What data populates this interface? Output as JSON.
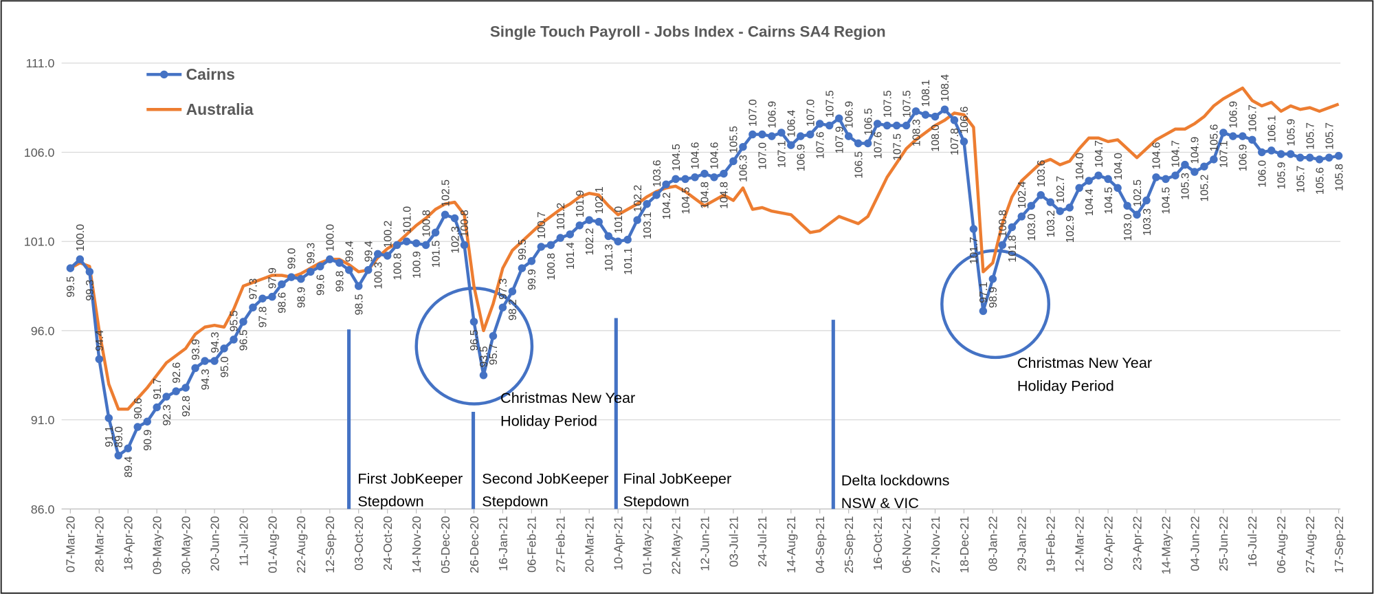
{
  "chart_data": {
    "type": "line",
    "title": "Single Touch Payroll - Jobs Index - Cairns SA4 Region",
    "categories": [
      "07-Mar-20",
      null,
      null,
      "28-Mar-20",
      null,
      null,
      "18-Apr-20",
      null,
      null,
      "09-May-20",
      null,
      null,
      "30-May-20",
      null,
      null,
      "20-Jun-20",
      null,
      null,
      "11-Jul-20",
      null,
      null,
      "01-Aug-20",
      null,
      null,
      "22-Aug-20",
      null,
      null,
      "12-Sep-20",
      null,
      null,
      "03-Oct-20",
      null,
      null,
      "24-Oct-20",
      null,
      null,
      "14-Nov-20",
      null,
      null,
      "05-Dec-20",
      null,
      null,
      "26-Dec-20",
      null,
      null,
      "16-Jan-21",
      null,
      null,
      "06-Feb-21",
      null,
      null,
      "27-Feb-21",
      null,
      null,
      "20-Mar-21",
      null,
      null,
      "10-Apr-21",
      null,
      null,
      "01-May-21",
      null,
      null,
      "22-May-21",
      null,
      null,
      "12-Jun-21",
      null,
      null,
      "03-Jul-21",
      null,
      null,
      "24-Jul-21",
      null,
      null,
      "14-Aug-21",
      null,
      null,
      "04-Sep-21",
      null,
      null,
      "25-Sep-21",
      null,
      null,
      "16-Oct-21",
      null,
      null,
      "06-Nov-21",
      null,
      null,
      "27-Nov-21",
      null,
      null,
      "18-Dec-21",
      null,
      null,
      "08-Jan-22",
      null,
      null,
      "29-Jan-22",
      null,
      null,
      "19-Feb-22",
      null,
      null,
      "12-Mar-22",
      null,
      null,
      "02-Apr-22",
      null,
      null,
      "23-Apr-22",
      null,
      null,
      "14-May-22",
      null,
      null,
      "04-Jun-22",
      null,
      null,
      "25-Jun-22",
      null,
      null,
      "16-Jul-22",
      null,
      null,
      "06-Aug-22",
      null,
      null,
      "27-Aug-22",
      null,
      null,
      "17-Sep-22"
    ],
    "series": [
      {
        "name": "Cairns",
        "color": "#4472c4",
        "markers": true,
        "values": [
          99.5,
          100.0,
          99.3,
          94.4,
          91.1,
          89.0,
          89.4,
          90.6,
          90.9,
          91.7,
          92.3,
          92.6,
          92.8,
          93.9,
          94.3,
          94.3,
          95.0,
          95.5,
          96.5,
          97.3,
          97.8,
          97.9,
          98.6,
          99.0,
          98.9,
          99.3,
          99.6,
          100.0,
          99.8,
          99.4,
          98.5,
          99.4,
          100.3,
          100.2,
          100.8,
          101.0,
          100.9,
          100.8,
          101.5,
          102.5,
          102.3,
          100.8,
          96.5,
          93.5,
          95.7,
          97.3,
          98.2,
          99.5,
          99.9,
          100.7,
          100.8,
          101.2,
          101.4,
          101.9,
          102.2,
          102.1,
          101.3,
          101.0,
          101.1,
          102.2,
          103.1,
          103.6,
          104.2,
          104.5,
          104.5,
          104.6,
          104.8,
          104.6,
          104.8,
          105.5,
          106.3,
          107.0,
          107.0,
          106.9,
          107.1,
          106.4,
          106.9,
          107.0,
          107.6,
          107.5,
          107.9,
          106.9,
          106.5,
          106.5,
          107.6,
          107.5,
          107.5,
          107.5,
          108.3,
          108.1,
          108.0,
          108.4,
          107.8,
          106.6,
          101.7,
          97.1,
          98.9,
          100.8,
          101.8,
          102.4,
          103.0,
          103.6,
          103.2,
          102.7,
          102.9,
          104.0,
          104.4,
          104.7,
          104.5,
          104.0,
          103.0,
          102.5,
          103.3,
          104.6,
          104.5,
          104.7,
          105.3,
          104.9,
          105.2,
          105.6,
          107.1,
          106.9,
          106.9,
          106.7,
          106.0,
          106.1,
          105.9,
          105.9,
          105.7,
          105.7,
          105.6,
          105.7,
          105.8
        ],
        "value_labels": [
          "99.5",
          "100.0",
          "99.3",
          "94.4",
          "91.1",
          "89.0",
          "89.4",
          "90.6",
          "90.9",
          "91.7",
          "92.3",
          "92.6",
          "92.8",
          "93.9",
          "94.3",
          "94.3",
          "95.0",
          "95.5",
          "96.5",
          "97.3",
          "97.8",
          "97.9",
          "98.6",
          "99.0",
          "98.9",
          "99.3",
          "99.6",
          "100.0",
          "99.8",
          "99.4",
          "98.5",
          "99.4",
          "100.3",
          "100.2",
          "100.8",
          "101.0",
          "100.9",
          "100.8",
          "101.5",
          "102.5",
          "102.3",
          "100.8",
          "96.5",
          "93.5",
          "95.7",
          "97.3",
          "98.2",
          "99.5",
          "99.9",
          "100.7",
          "100.8",
          "101.2",
          "101.4",
          "101.9",
          "102.2",
          "102.1",
          "101.3",
          "101.0",
          "101.1",
          "102.2",
          "103.1",
          "103.6",
          "104.2",
          "104.5",
          "104.5",
          "104.6",
          "104.8",
          "104.6",
          "104.8",
          "105.5",
          "106.3",
          "107.0",
          "107.0",
          "106.9",
          "107.1",
          "106.4",
          "106.9",
          "107.0",
          "107.6",
          "107.5",
          "107.9",
          "106.9",
          "106.5",
          "106.5",
          "107.6",
          "107.5",
          "107.5",
          "107.5",
          "108.3",
          "108.1",
          "108.0",
          "108.4",
          "107.8",
          "106.6",
          "101.7",
          "97.1",
          "98.9",
          "100.8",
          "101.8",
          "102.4",
          "103.0",
          "103.6",
          "103.2",
          "102.7",
          "102.9",
          "104.0",
          "104.4",
          "104.7",
          "104.5",
          "104.0",
          "103.0",
          "102.5",
          "103.3",
          "104.6",
          "104.5",
          "104.7",
          "105.3",
          "104.9",
          "105.2",
          "105.6",
          "107.1",
          "106.9",
          "106.9",
          "106.7",
          "106.0",
          "106.1",
          "105.9",
          "105.9",
          "105.7",
          "105.7",
          "105.6",
          "105.7",
          "105.8"
        ]
      },
      {
        "name": "Australia",
        "color": "#ed7d31",
        "markers": false,
        "values": [
          99.5,
          99.8,
          99.6,
          96.0,
          93.0,
          91.6,
          91.6,
          92.2,
          92.8,
          93.5,
          94.2,
          94.6,
          95.0,
          95.8,
          96.2,
          96.3,
          96.2,
          97.2,
          98.5,
          98.7,
          98.9,
          99.1,
          99.1,
          99.0,
          99.2,
          99.5,
          99.8,
          100.0,
          100.0,
          99.7,
          99.3,
          99.4,
          100.1,
          100.6,
          100.9,
          101.4,
          101.9,
          102.3,
          102.8,
          103.1,
          103.2,
          102.5,
          98.5,
          96.0,
          97.5,
          99.5,
          100.5,
          101.0,
          101.5,
          102.0,
          102.4,
          102.8,
          103.1,
          103.5,
          103.7,
          103.6,
          103.0,
          102.5,
          102.8,
          103.1,
          103.5,
          103.8,
          104.0,
          104.1,
          103.8,
          103.4,
          103.0,
          103.3,
          103.6,
          103.3,
          104.0,
          102.8,
          102.9,
          102.7,
          102.6,
          102.5,
          102.0,
          101.5,
          101.6,
          102.0,
          102.4,
          102.2,
          102.0,
          102.4,
          103.5,
          104.6,
          105.4,
          106.2,
          106.7,
          107.1,
          107.5,
          107.8,
          108.2,
          108.1,
          107.4,
          99.3,
          99.8,
          102.0,
          103.5,
          104.4,
          104.9,
          105.4,
          105.6,
          105.3,
          105.5,
          106.2,
          106.8,
          106.8,
          106.6,
          106.7,
          106.2,
          105.7,
          106.2,
          106.7,
          107.0,
          107.3,
          107.3,
          107.6,
          108.0,
          108.6,
          109.0,
          109.3,
          109.6,
          108.9,
          108.6,
          108.8,
          108.3,
          108.6,
          108.4,
          108.5,
          108.3,
          108.5,
          108.7
        ]
      }
    ],
    "ylim": [
      86,
      111
    ],
    "yticks": [
      {
        "value": 86,
        "label": "86.0"
      },
      {
        "value": 91,
        "label": "91.0"
      },
      {
        "value": 96,
        "label": "96.0"
      },
      {
        "value": 101,
        "label": "101.0"
      },
      {
        "value": 106,
        "label": "106.0"
      },
      {
        "value": 111,
        "label": "111.0"
      }
    ],
    "grid": true,
    "legend": "top-left",
    "annotations": [
      {
        "lines": [
          "First JobKeeper",
          "Stepdown"
        ]
      },
      {
        "lines": [
          "Second JobKeeper",
          "Stepdown"
        ]
      },
      {
        "lines": [
          "Final JobKeeper",
          "Stepdown"
        ]
      },
      {
        "lines": [
          "Delta lockdowns",
          "NSW & VIC"
        ]
      },
      {
        "lines": [
          "Christmas New Year",
          "Holiday Period"
        ]
      },
      {
        "lines": [
          "Christmas New Year",
          "Holiday Period"
        ]
      }
    ]
  }
}
